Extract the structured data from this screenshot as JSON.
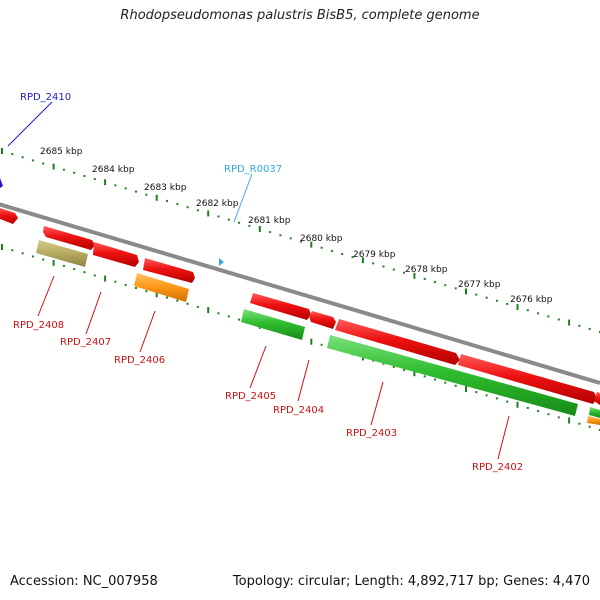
{
  "title": "Rhodopseudomonas palustris BisB5, complete genome",
  "footer": {
    "accession": "Accession: NC_007958",
    "topology": "Topology: circular; Length: 4,892,717 bp; Genes: 4,470"
  },
  "colors": {
    "backbone": "#8a8a8a",
    "tick": "#1f7f1f",
    "cds_red": "#ef1010",
    "cds_green": "#2fbe2f",
    "cds_orange": "#ff9a1a",
    "cds_khaki": "#b8ad62",
    "label_red": "#cc1111",
    "label_blue": "#1a1acc",
    "label_cyan": "#33aadd"
  },
  "scale_labels": [
    "2685 kbp",
    "2684 kbp",
    "2683 kbp",
    "2682 kbp",
    "2681 kbp",
    "2680 kbp",
    "2679 kbp",
    "2678 kbp",
    "2677 kbp",
    "2676 kbp"
  ],
  "gene_labels": [
    {
      "id": "rpd_2410",
      "text": "RPD_2410",
      "color": "blue"
    },
    {
      "id": "rpd_r0037",
      "text": "RPD_R0037",
      "color": "cyan"
    },
    {
      "id": "rpd_2408",
      "text": "RPD_2408",
      "color": "red"
    },
    {
      "id": "rpd_2407",
      "text": "RPD_2407",
      "color": "red"
    },
    {
      "id": "rpd_2406",
      "text": "RPD_2406",
      "color": "red"
    },
    {
      "id": "rpd_2405",
      "text": "RPD_2405",
      "color": "red"
    },
    {
      "id": "rpd_2404",
      "text": "RPD_2404",
      "color": "red"
    },
    {
      "id": "rpd_2403",
      "text": "RPD_2403",
      "color": "red"
    },
    {
      "id": "rpd_2402",
      "text": "RPD_2402",
      "color": "red"
    }
  ]
}
